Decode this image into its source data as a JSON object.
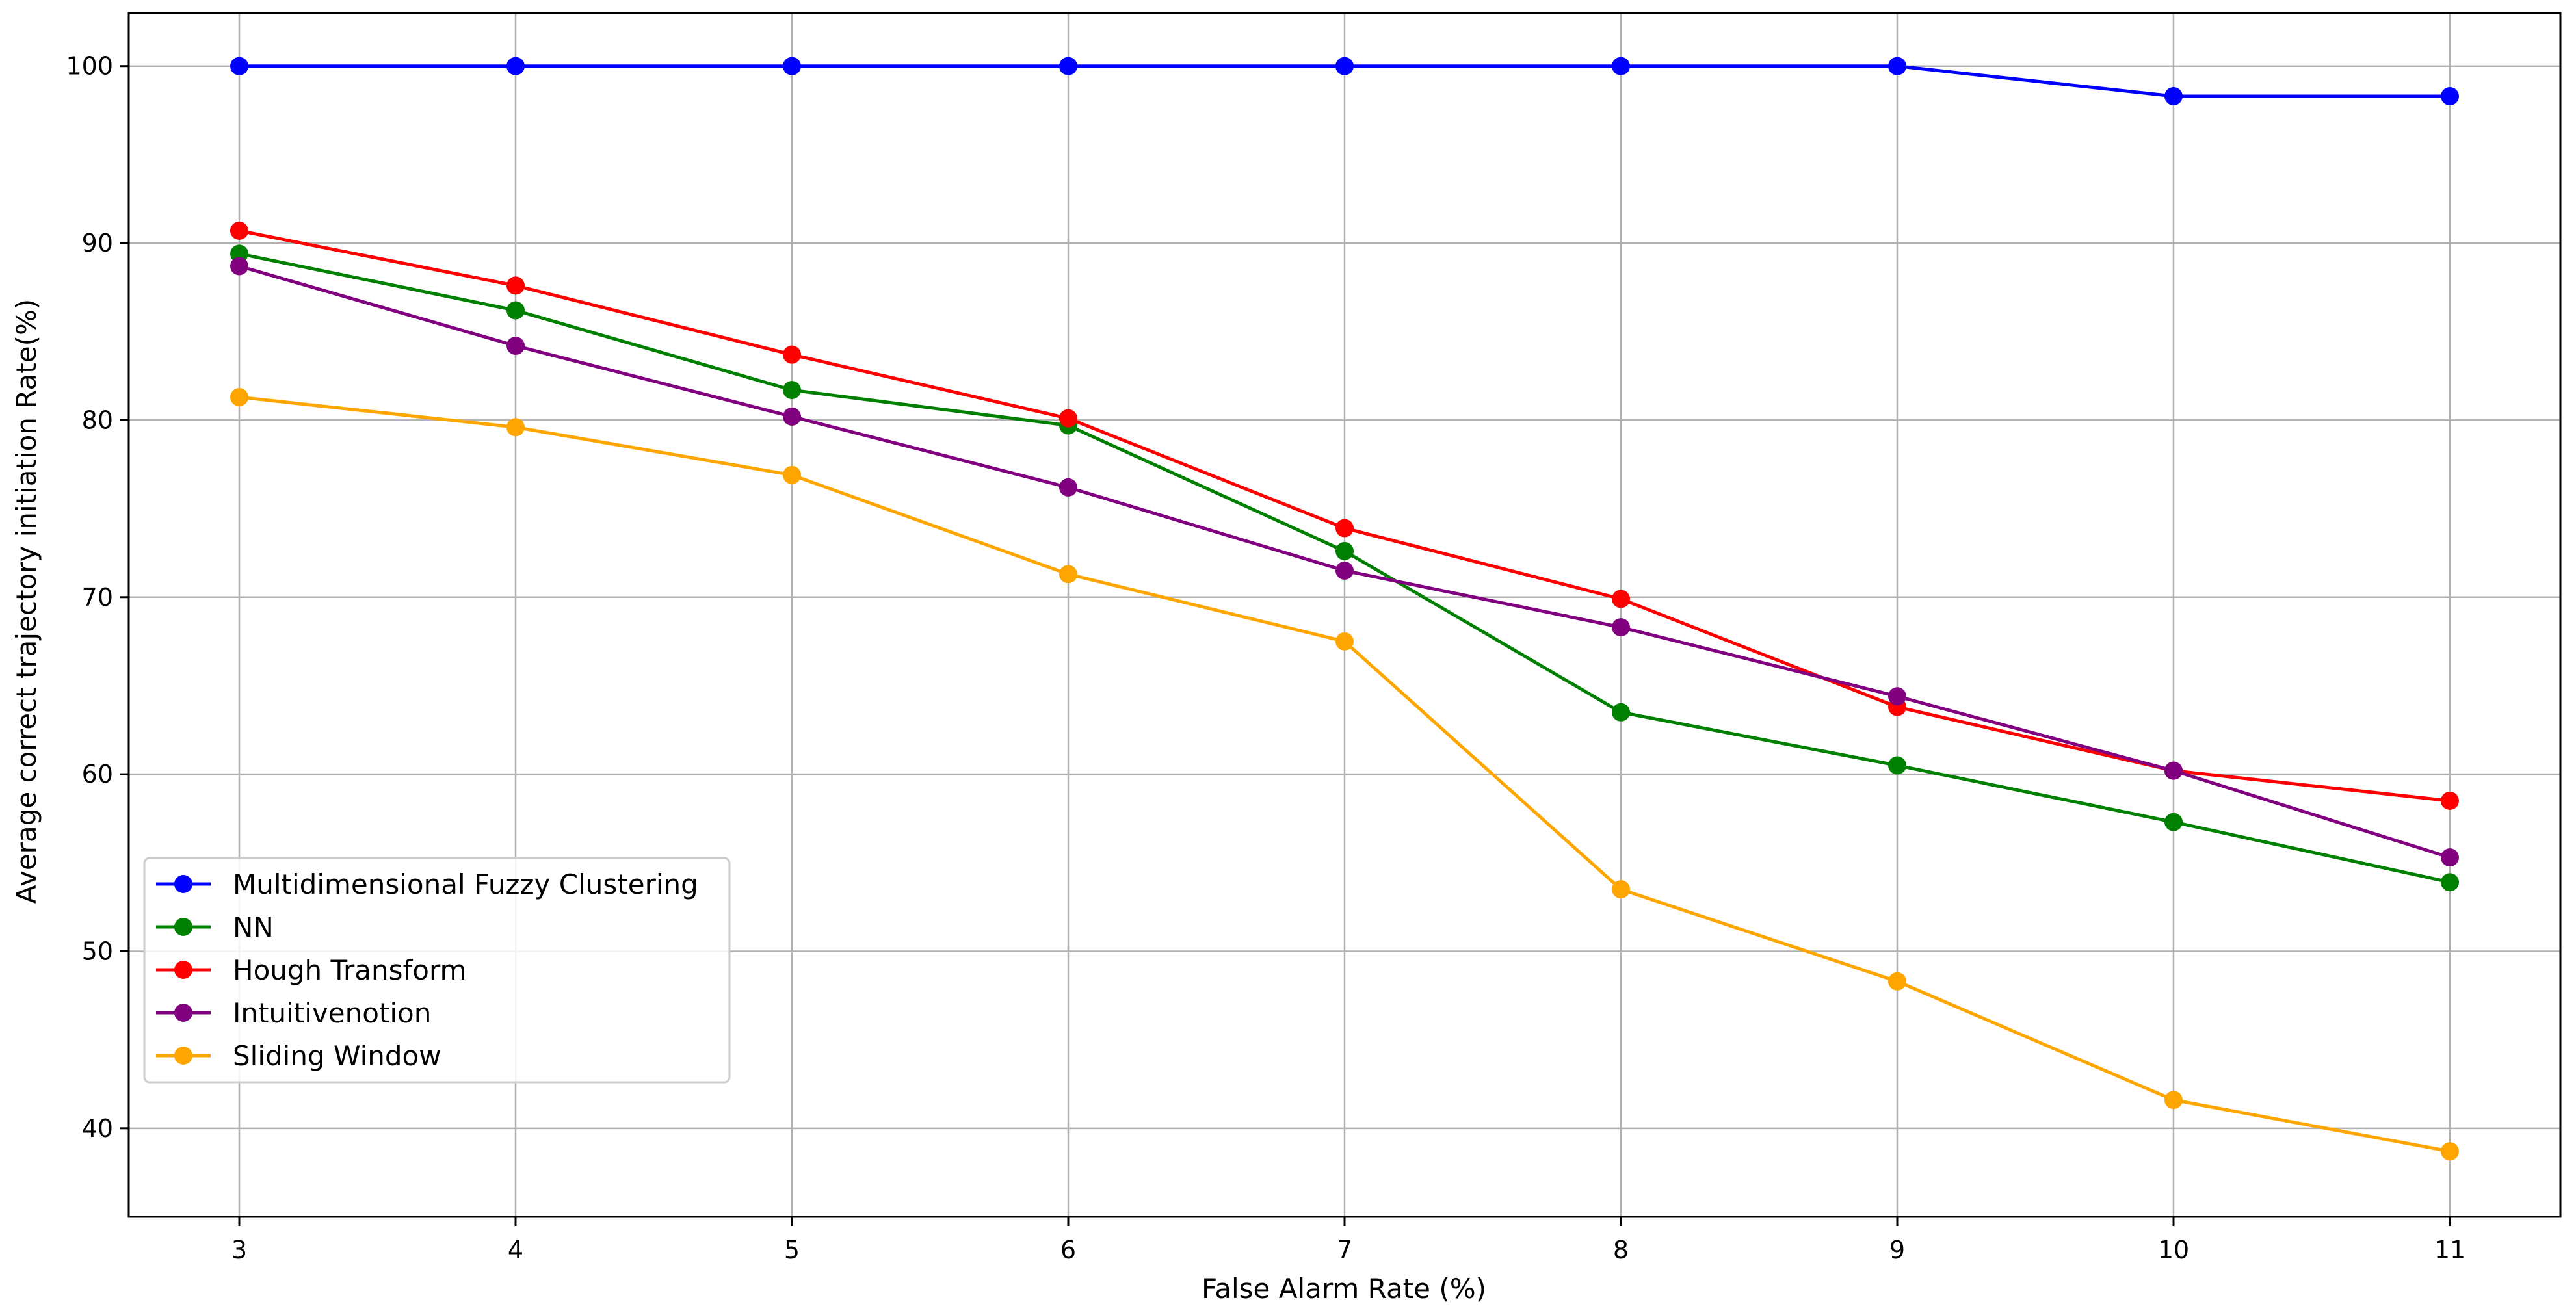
{
  "chart_data": {
    "type": "line",
    "title": "",
    "xlabel": "False Alarm Rate (%)",
    "ylabel": "Average correct trajectory initiation Rate(%)",
    "x": [
      3,
      4,
      5,
      6,
      7,
      8,
      9,
      10,
      11
    ],
    "xlim": [
      2.6,
      11.4
    ],
    "ylim": [
      35,
      103
    ],
    "xticks": [
      3,
      4,
      5,
      6,
      7,
      8,
      9,
      10,
      11
    ],
    "yticks": [
      40,
      50,
      60,
      70,
      80,
      90,
      100
    ],
    "grid": true,
    "legend_position": "lower-left",
    "series": [
      {
        "name": "Multidimensional Fuzzy Clustering",
        "color": "#0000ff",
        "values": [
          100,
          100,
          100,
          100,
          100,
          100,
          100,
          98.3,
          98.3
        ]
      },
      {
        "name": "NN",
        "color": "#008000",
        "values": [
          89.4,
          86.2,
          81.7,
          79.7,
          72.6,
          63.5,
          60.5,
          57.3,
          53.9
        ]
      },
      {
        "name": "Hough Transform",
        "color": "#ff0000",
        "values": [
          90.7,
          87.6,
          83.7,
          80.1,
          73.9,
          69.9,
          63.8,
          60.2,
          58.5
        ]
      },
      {
        "name": "Intuitivenotion",
        "color": "#800080",
        "values": [
          88.7,
          84.2,
          80.2,
          76.2,
          71.5,
          68.3,
          64.4,
          60.2,
          55.3
        ]
      },
      {
        "name": "Sliding Window",
        "color": "#ffa500",
        "values": [
          81.3,
          79.6,
          76.9,
          71.3,
          67.5,
          53.5,
          48.3,
          41.6,
          38.7
        ]
      }
    ]
  }
}
